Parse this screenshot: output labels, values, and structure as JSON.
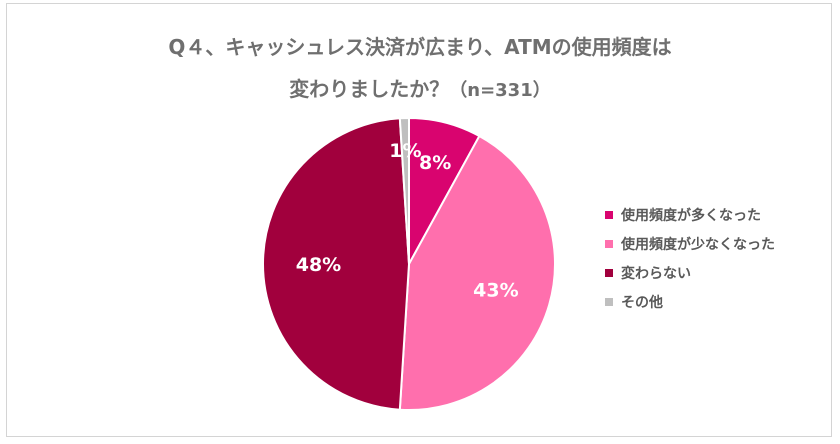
{
  "title": {
    "line1": "Q４、キャッシュレス決済が広まり、ATMの使用頻度は",
    "line2_main": "変わりましたか？",
    "line2_sub": "（n=331）"
  },
  "chart_data": {
    "type": "pie",
    "title": "Q４、キャッシュレス決済が広まり、ATMの使用頻度は変わりましたか？（n=331）",
    "legend_position": "right",
    "slices": [
      {
        "name": "使用頻度が多くなった",
        "value": 8,
        "label": "8%",
        "color": "#d9046f"
      },
      {
        "name": "使用頻度が少なくなった",
        "value": 43,
        "label": "43%",
        "color": "#ff6fad"
      },
      {
        "name": "変わらない",
        "value": 48,
        "label": "48%",
        "color": "#a1003d"
      },
      {
        "name": "その他",
        "value": 1,
        "label": "1%",
        "color": "#bfbfbf"
      }
    ]
  }
}
